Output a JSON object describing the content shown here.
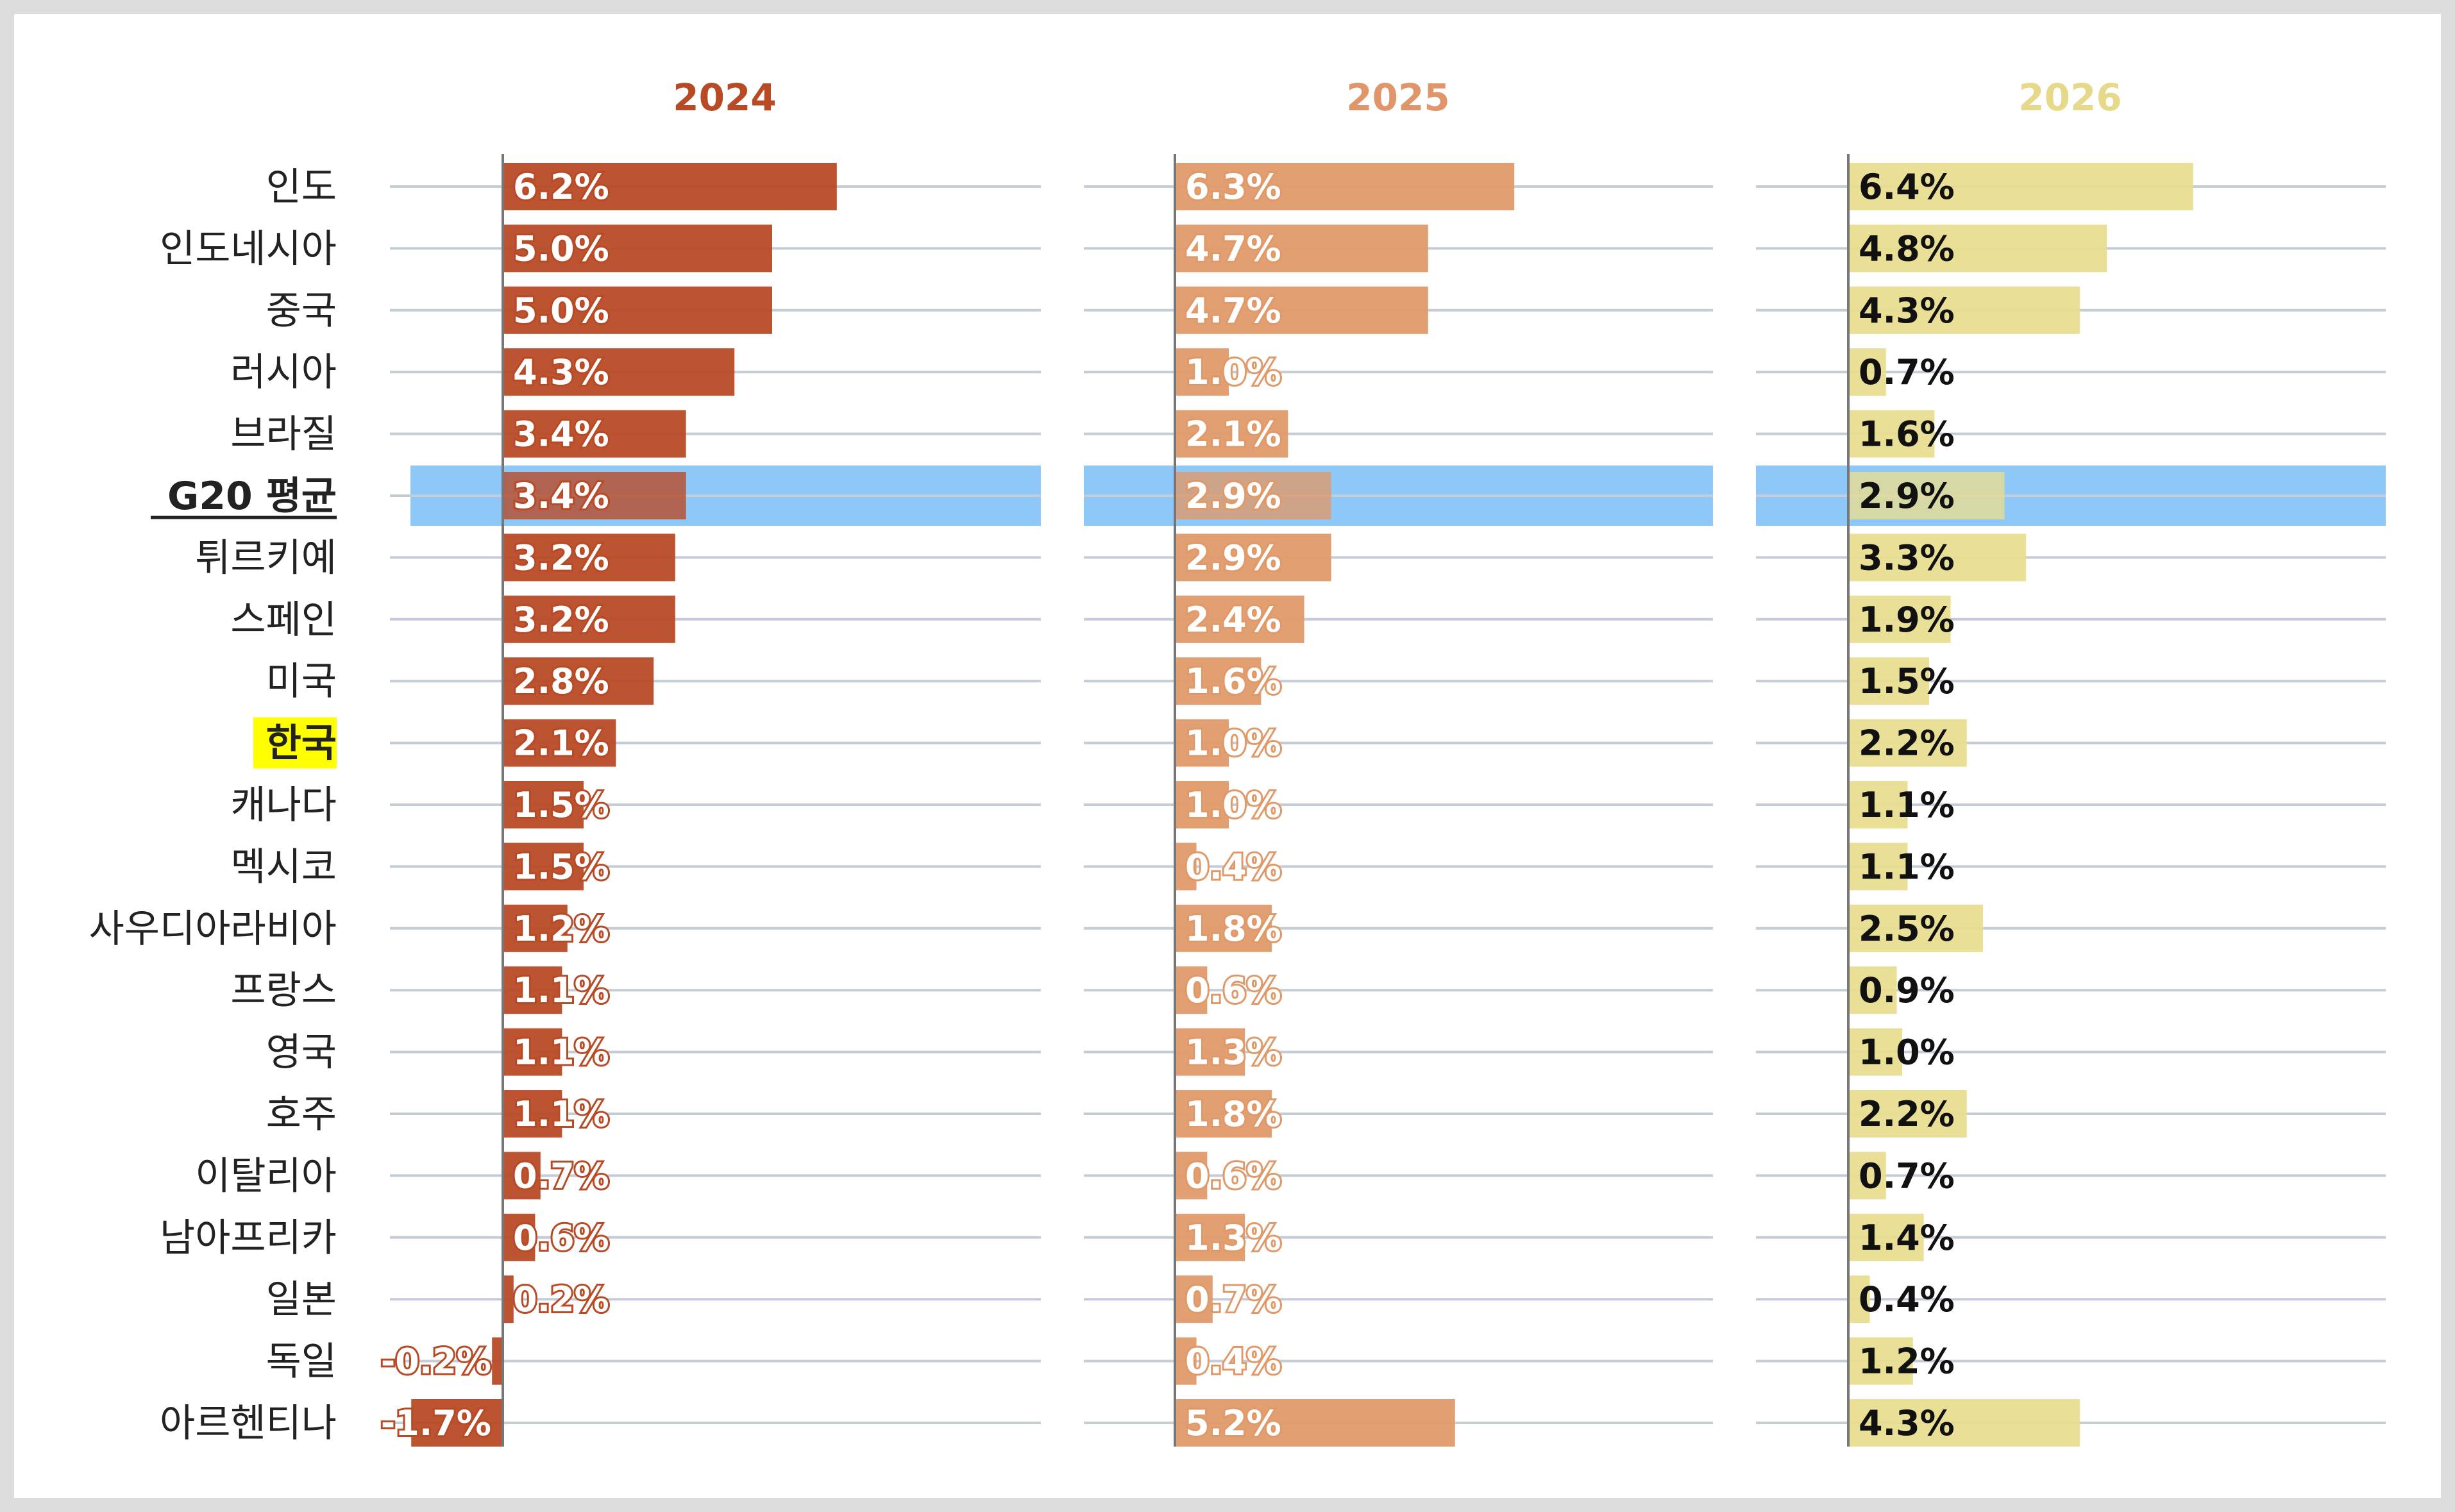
{
  "chart_data": {
    "type": "bar",
    "orientation": "horizontal",
    "categories": [
      "인도",
      "인도네시아",
      "중국",
      "러시아",
      "브라질",
      "G20 평균",
      "튀르키예",
      "스페인",
      "미국",
      "한국",
      "캐나다",
      "멕시코",
      "사우디아라비아",
      "프랑스",
      "영국",
      "호주",
      "이탈리아",
      "남아프리카",
      "일본",
      "독일",
      "아르헨티나"
    ],
    "series": [
      {
        "name": "2024",
        "color": "#b84a26",
        "header_color": "#b84a26",
        "label_color": "#ffffff",
        "values": [
          6.2,
          5.0,
          5.0,
          4.3,
          3.4,
          3.4,
          3.2,
          3.2,
          2.8,
          2.1,
          1.5,
          1.5,
          1.2,
          1.1,
          1.1,
          1.1,
          0.7,
          0.6,
          0.2,
          -0.2,
          -1.7
        ],
        "labels": [
          "6.2%",
          "5.0%",
          "5.0%",
          "4.3%",
          "3.4%",
          "3.4%",
          "3.2%",
          "3.2%",
          "2.8%",
          "2.1%",
          "1.5%",
          "1.5%",
          "1.2%",
          "1.1%",
          "1.1%",
          "1.1%",
          "0.7%",
          "0.6%",
          "0.2%",
          "-0.2%",
          "-1.7%"
        ]
      },
      {
        "name": "2025",
        "color": "#e09a6a",
        "header_color": "#e0966a",
        "label_color": "#ffffff",
        "values": [
          6.3,
          4.7,
          4.7,
          1.0,
          2.1,
          2.9,
          2.9,
          2.4,
          1.6,
          1.0,
          1.0,
          0.4,
          1.8,
          0.6,
          1.3,
          1.8,
          0.6,
          1.3,
          0.7,
          0.4,
          5.2
        ],
        "labels": [
          "6.3%",
          "4.7%",
          "4.7%",
          "1.0%",
          "2.1%",
          "2.9%",
          "2.9%",
          "2.4%",
          "1.6%",
          "1.0%",
          "1.0%",
          "0.4%",
          "1.8%",
          "0.6%",
          "1.3%",
          "1.8%",
          "0.6%",
          "1.3%",
          "0.7%",
          "0.4%",
          "5.2%"
        ]
      },
      {
        "name": "2026",
        "color": "#e8dd90",
        "header_color": "#e6d98a",
        "label_color": "#111111",
        "values": [
          6.4,
          4.8,
          4.3,
          0.7,
          1.6,
          2.9,
          3.3,
          1.9,
          1.5,
          2.2,
          1.1,
          1.1,
          2.5,
          0.9,
          1.0,
          2.2,
          0.7,
          1.4,
          0.4,
          1.2,
          4.3
        ],
        "labels": [
          "6.4%",
          "4.8%",
          "4.3%",
          "0.7%",
          "1.6%",
          "2.9%",
          "3.3%",
          "1.9%",
          "1.5%",
          "2.2%",
          "1.1%",
          "1.1%",
          "2.5%",
          "0.9%",
          "1.0%",
          "2.2%",
          "0.7%",
          "1.4%",
          "0.4%",
          "1.2%",
          "4.3%"
        ]
      }
    ],
    "highlighted_row": "G20 평균",
    "marked_row": "한국",
    "grid": true,
    "legend": "none",
    "colors": {
      "highlight_band": "#8ec8f8",
      "marked_label_bg": "#ffff00",
      "gridline": "#c5ccd8",
      "zero_axis": "#777777"
    }
  }
}
